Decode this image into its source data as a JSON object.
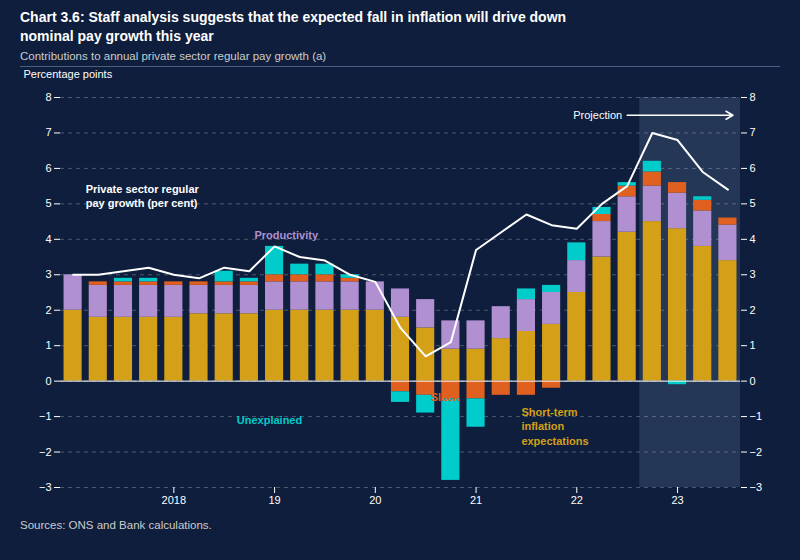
{
  "chart_data": {
    "type": "bar",
    "stacked": true,
    "title": "Chart 3.6: Staff analysis suggests that the expected fall in inflation will drive down\nnominal pay growth this year",
    "subtitle": "Contributions to annual private sector regular pay growth (a)",
    "source": "Sources: ONS and Bank calculations.",
    "ylabel": "Percentage points",
    "categories": [
      null,
      null,
      null,
      null,
      "2018",
      null,
      null,
      null,
      "19",
      null,
      null,
      null,
      "20",
      null,
      null,
      null,
      "21",
      null,
      null,
      null,
      "22",
      null,
      null,
      null,
      "23",
      null,
      null
    ],
    "series": [
      {
        "name": "Short-term\ninflation\nexpectations",
        "color": "#d4a017",
        "values": [
          2.0,
          1.8,
          1.8,
          1.8,
          1.8,
          1.9,
          1.9,
          1.9,
          2.0,
          2.0,
          2.0,
          2.0,
          2.0,
          1.8,
          1.5,
          0.9,
          0.9,
          1.2,
          1.4,
          1.6,
          2.5,
          3.5,
          4.2,
          4.5,
          4.3,
          3.8,
          3.4
        ]
      },
      {
        "name": "Productivity",
        "color": "#b090d0",
        "values": [
          1.0,
          0.9,
          0.9,
          0.9,
          0.9,
          0.8,
          0.8,
          0.8,
          0.8,
          0.8,
          0.8,
          0.8,
          0.8,
          0.8,
          0.8,
          0.8,
          0.8,
          0.9,
          0.9,
          0.9,
          0.9,
          1.0,
          1.0,
          1.0,
          1.0,
          1.0,
          1.0
        ]
      },
      {
        "name": "Slack",
        "color": "#e06020",
        "values": [
          0.0,
          0.1,
          0.1,
          0.1,
          0.1,
          0.1,
          0.1,
          0.1,
          0.2,
          0.2,
          0.2,
          0.1,
          0.0,
          -0.3,
          -0.4,
          -0.5,
          -0.5,
          -0.4,
          -0.4,
          -0.2,
          0.0,
          0.2,
          0.3,
          0.4,
          0.3,
          0.3,
          0.2
        ]
      },
      {
        "name": "Unexplained",
        "color": "#00cccc",
        "values": [
          0.0,
          0.0,
          0.1,
          0.1,
          0.0,
          0.0,
          0.3,
          0.1,
          0.8,
          0.3,
          0.3,
          0.1,
          0.0,
          -0.3,
          -0.5,
          -2.3,
          -0.8,
          0.0,
          0.3,
          0.2,
          0.5,
          0.2,
          0.1,
          0.3,
          -0.1,
          0.1,
          0.0
        ]
      },
      {
        "name": "Private sector regular\npay growth (per cent)",
        "type": "line",
        "color": "#ffffff",
        "values": [
          3.0,
          3.0,
          3.1,
          3.2,
          3.0,
          2.9,
          3.2,
          3.1,
          3.8,
          3.5,
          3.4,
          3.0,
          2.8,
          1.5,
          0.7,
          1.1,
          3.7,
          4.2,
          4.7,
          4.4,
          4.3,
          5.0,
          5.5,
          7.0,
          6.8,
          5.9,
          5.4
        ]
      }
    ],
    "ylim": [
      -3,
      8
    ],
    "yticks": [
      -3,
      -2,
      -1,
      0,
      1,
      2,
      3,
      4,
      5,
      6,
      7,
      8
    ],
    "y2lim": [
      -3,
      8
    ],
    "y2ticks": [
      -3,
      -2,
      -1,
      0,
      1,
      2,
      3,
      4,
      5,
      6,
      7,
      8
    ],
    "grid": true,
    "annotations": [
      "Projection"
    ],
    "projection_start": 23
  }
}
